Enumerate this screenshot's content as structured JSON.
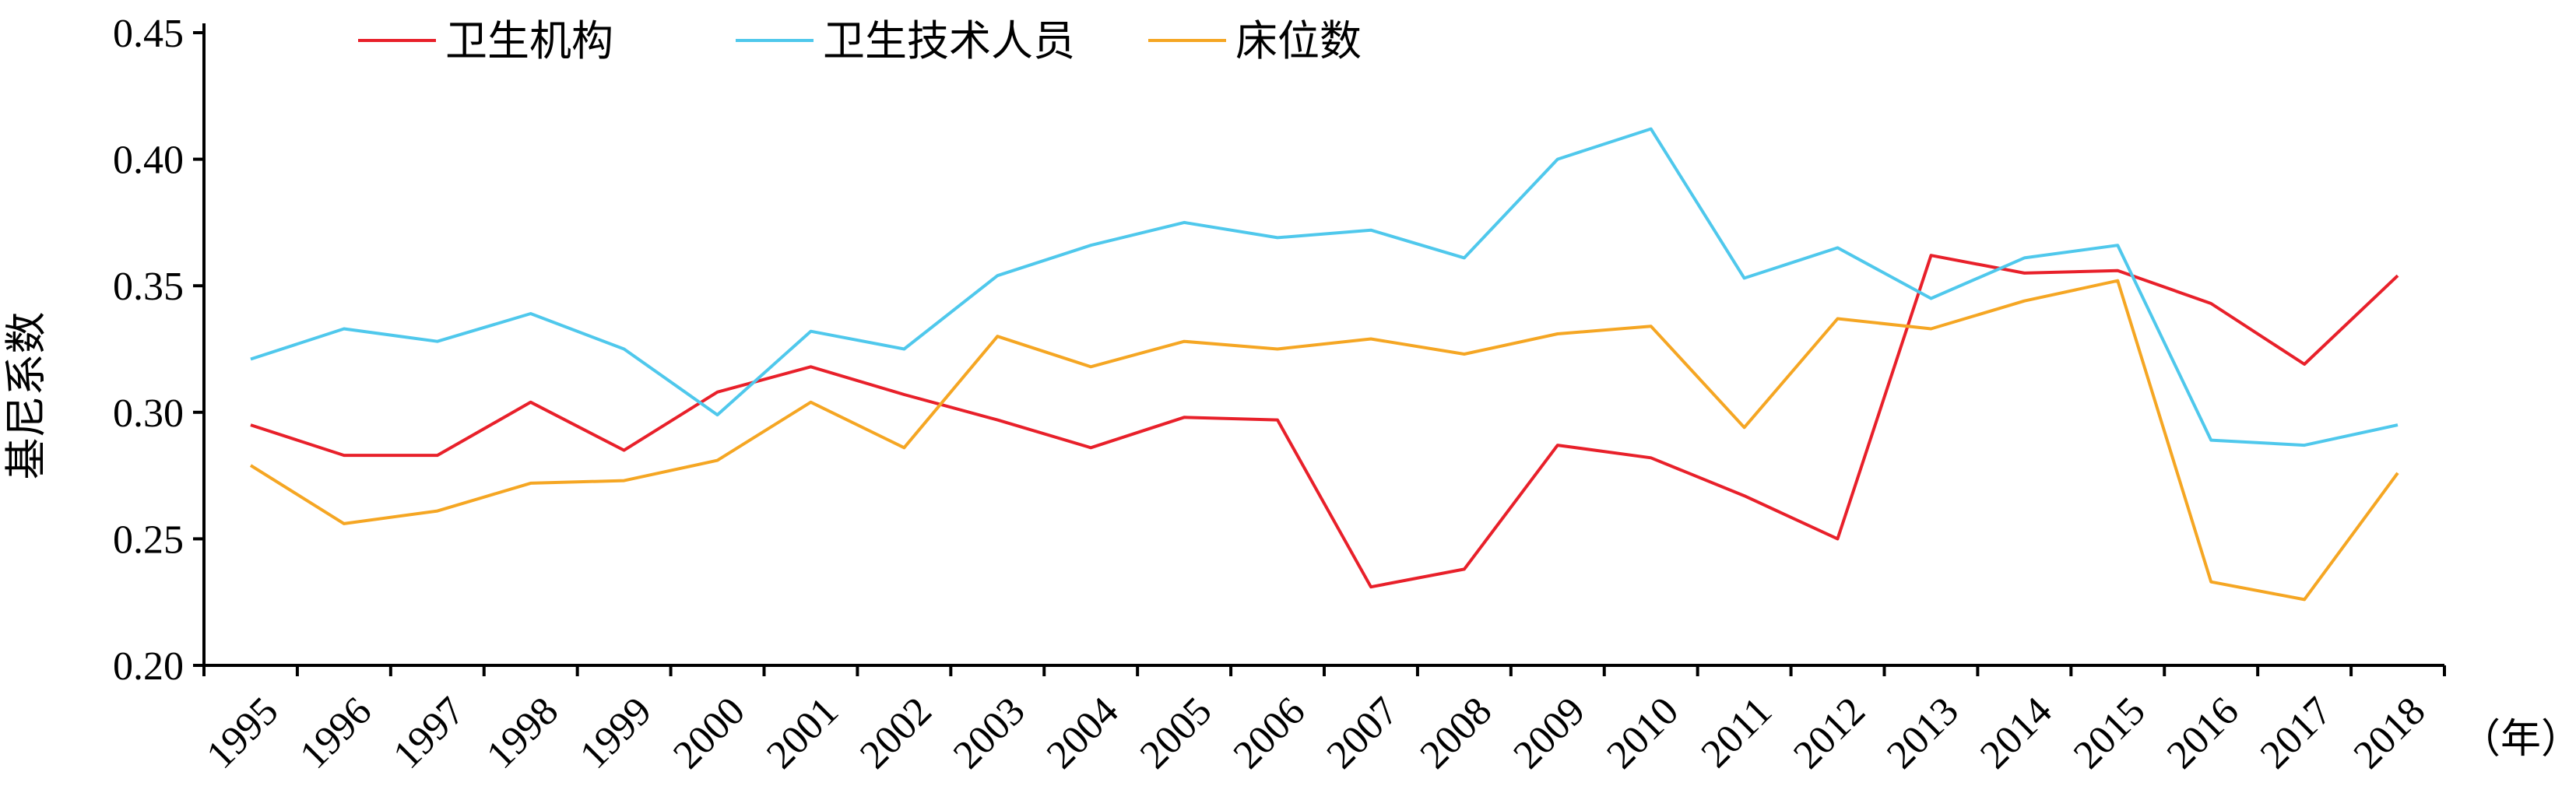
{
  "chart_data": {
    "type": "line",
    "title": "",
    "ylabel": "基尼系数",
    "xunit": "（年）",
    "ylim": [
      0.2,
      0.45
    ],
    "yticks": [
      "0.20",
      "0.25",
      "0.30",
      "0.35",
      "0.40",
      "0.45"
    ],
    "ytick_values": [
      0.2,
      0.25,
      0.3,
      0.35,
      0.4,
      0.45
    ],
    "categories": [
      "1995",
      "1996",
      "1997",
      "1998",
      "1999",
      "2000",
      "2001",
      "2002",
      "2003",
      "2004",
      "2005",
      "2006",
      "2007",
      "2008",
      "2009",
      "2010",
      "2011",
      "2012",
      "2013",
      "2014",
      "2015",
      "2016",
      "2017",
      "2018"
    ],
    "grid": false,
    "legend_position": "top",
    "series": [
      {
        "name": "卫生机构",
        "color": "#E8202A",
        "values": [
          0.295,
          0.283,
          0.283,
          0.304,
          0.285,
          0.308,
          0.318,
          0.307,
          0.297,
          0.286,
          0.298,
          0.297,
          0.231,
          0.238,
          0.287,
          0.282,
          0.267,
          0.25,
          0.362,
          0.355,
          0.356,
          0.343,
          0.319,
          0.354
        ]
      },
      {
        "name": "卫生技术人员",
        "color": "#4FC8EC",
        "values": [
          0.321,
          0.333,
          0.328,
          0.339,
          0.325,
          0.299,
          0.332,
          0.325,
          0.354,
          0.366,
          0.375,
          0.369,
          0.372,
          0.361,
          0.4,
          0.412,
          0.353,
          0.365,
          0.345,
          0.361,
          0.366,
          0.289,
          0.287,
          0.295
        ]
      },
      {
        "name": "床位数",
        "color": "#F5A623",
        "values": [
          0.279,
          0.256,
          0.261,
          0.272,
          0.273,
          0.281,
          0.304,
          0.286,
          0.33,
          0.318,
          0.328,
          0.325,
          0.329,
          0.323,
          0.331,
          0.334,
          0.294,
          0.337,
          0.333,
          0.344,
          0.352,
          0.233,
          0.226,
          0.276
        ]
      }
    ]
  }
}
